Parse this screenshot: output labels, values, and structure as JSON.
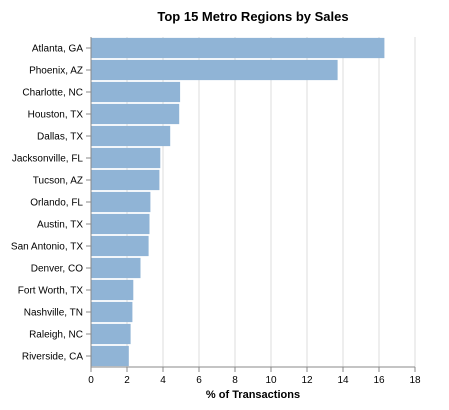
{
  "chart_data": {
    "type": "bar",
    "orientation": "horizontal",
    "title": "Top 15 Metro Regions by Sales",
    "xlabel": "% of Transactions",
    "ylabel": "",
    "xlim": [
      0,
      18
    ],
    "x_ticks": [
      "0",
      "2",
      "4",
      "6",
      "8",
      "10",
      "12",
      "14",
      "16",
      "18"
    ],
    "grid": true,
    "bar_color": "#90b4d6",
    "categories": [
      "Atlanta, GA",
      "Phoenix, AZ",
      "Charlotte, NC",
      "Houston, TX",
      "Dallas, TX",
      "Jacksonville, FL",
      "Tucson, AZ",
      "Orlando, FL",
      "Austin, TX",
      "San Antonio, TX",
      "Denver, CO",
      "Fort Worth, TX",
      "Nashville, TN",
      "Raleigh, NC",
      "Riverside, CA"
    ],
    "values": [
      16.3,
      13.7,
      4.95,
      4.9,
      4.4,
      3.85,
      3.8,
      3.3,
      3.25,
      3.2,
      2.75,
      2.35,
      2.3,
      2.2,
      2.1
    ]
  }
}
